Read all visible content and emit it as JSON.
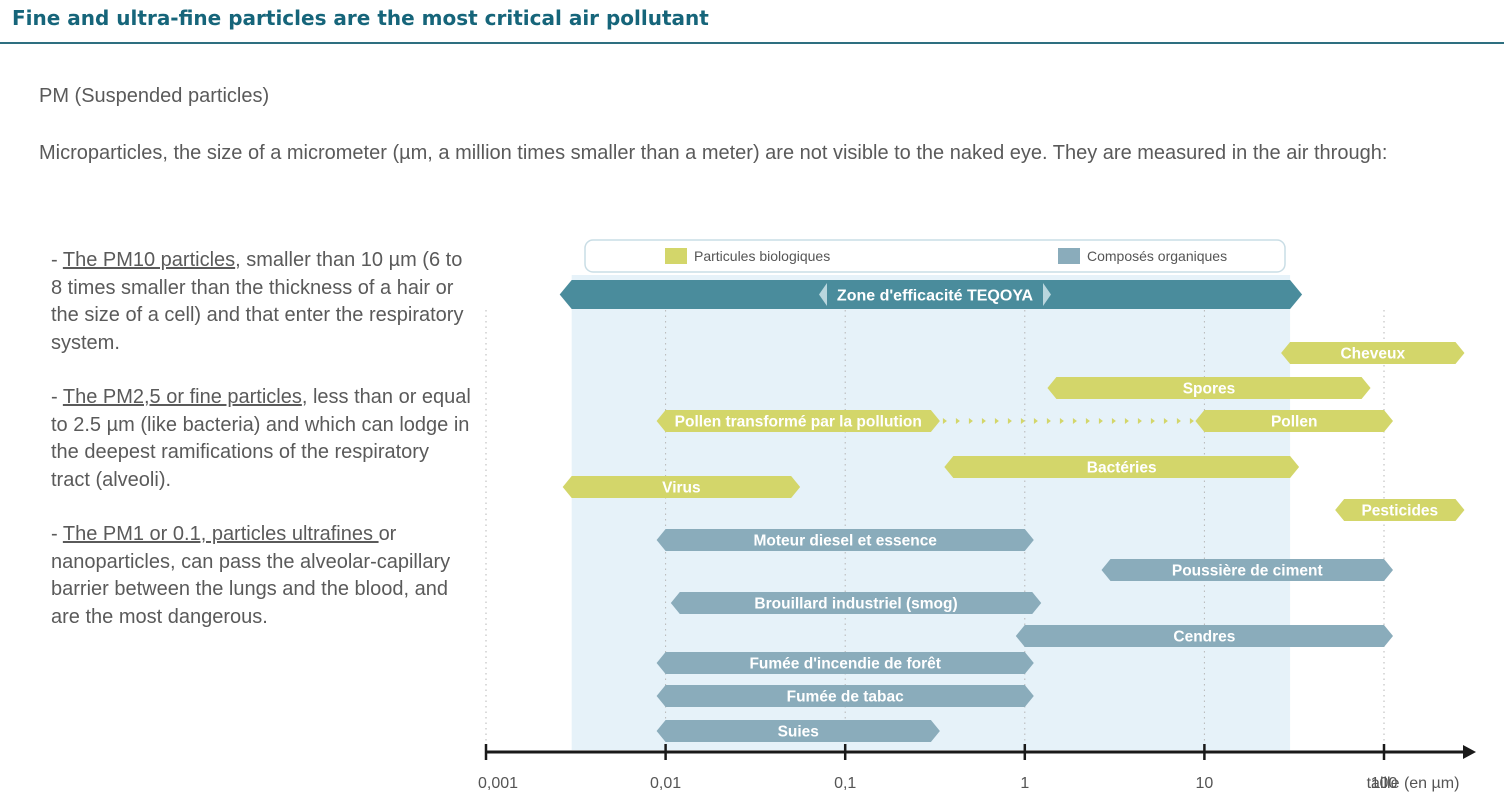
{
  "header": {
    "title": "Fine and ultra-fine particles are the most critical air pollutant"
  },
  "pm_title": "PM (Suspended particles)",
  "intro": "Microparticles, the size of a micrometer (µm, a million times smaller than a meter) are not visible to the naked eye. They are measured in the air through:",
  "bullets": [
    {
      "prefix": "- ",
      "link": "The PM10 particles",
      "rest": ", smaller than 10 µm (6 to  8 times smaller than the thickness of a hair or the size of a cell) and  that enter the respiratory system."
    },
    {
      "prefix": "- ",
      "link": "The PM2,5 or fine particles",
      "rest": ", less than or equal to 2.5 µm (like bacteria) and which can lodge in the deepest ramifications of the respiratory tract (alveoli)."
    },
    {
      "prefix": "- ",
      "link": "The PM1 or  0.1, particles ultrafines ",
      "rest": "or nanoparticles, can pass the alveolar-capillary barrier between the lungs and the blood, and are the most dangerous."
    }
  ],
  "colors": {
    "biological": "#d3d66a",
    "organic": "#8aacbb",
    "zone": "#4a8c9c",
    "zone_bg": "#e6f2f9",
    "title": "#16657a"
  },
  "chart_data": {
    "type": "range-bar",
    "xscale": "log",
    "xlim": [
      0.001,
      100
    ],
    "ticks": [
      "0,001",
      "0,01",
      "0,1",
      "1",
      "10",
      "100"
    ],
    "xlabel": "taille (en µm)",
    "legend": [
      {
        "name": "Particules biologiques",
        "color": "#d3d66a"
      },
      {
        "name": "Composés organiques",
        "color": "#8aacbb"
      }
    ],
    "zone": {
      "label": "Zone d'efficacité TEQOYA",
      "from": 0.003,
      "to": 30
    },
    "bars": [
      {
        "label": "Cheveux",
        "group": "biological",
        "from": 30,
        "to": 250
      },
      {
        "label": "Spores",
        "group": "biological",
        "from": 1.5,
        "to": 75
      },
      {
        "label": "Pollen transformé par la pollution",
        "group": "biological",
        "from": 0.01,
        "to": 0.3
      },
      {
        "label": "Pollen",
        "group": "biological",
        "from": 10,
        "to": 100
      },
      {
        "label": "Bactéries",
        "group": "biological",
        "from": 0.4,
        "to": 30
      },
      {
        "label": "Virus",
        "group": "biological",
        "from": 0.003,
        "to": 0.05
      },
      {
        "label": "Pesticides",
        "group": "biological",
        "from": 60,
        "to": 250
      },
      {
        "label": "Moteur diesel et essence",
        "group": "organic",
        "from": 0.01,
        "to": 1
      },
      {
        "label": "Poussière de ciment",
        "group": "organic",
        "from": 3,
        "to": 100
      },
      {
        "label": "Brouillard industriel (smog)",
        "group": "organic",
        "from": 0.012,
        "to": 1.1
      },
      {
        "label": "Cendres",
        "group": "organic",
        "from": 1,
        "to": 100
      },
      {
        "label": "Fumée d'incendie de forêt",
        "group": "organic",
        "from": 0.01,
        "to": 1
      },
      {
        "label": "Fumée de tabac",
        "group": "organic",
        "from": 0.01,
        "to": 1
      },
      {
        "label": "Suies",
        "group": "organic",
        "from": 0.01,
        "to": 0.3
      }
    ]
  }
}
